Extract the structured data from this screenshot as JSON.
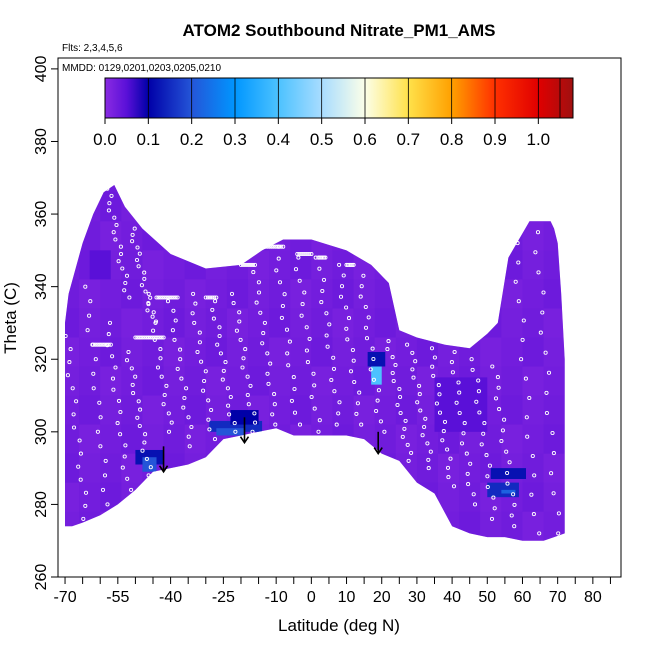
{
  "chart_data": {
    "type": "heatmap",
    "title": "ATOM2 Southbound Nitrate_PM1_AMS",
    "flights_label": "Flts: 2,3,4,5,6",
    "dates_label": "MMDD: 0129,0201,0203,0205,0210",
    "xlabel": "Latitude (deg N)",
    "ylabel": "Theta (C)",
    "xlim": [
      -72,
      88
    ],
    "ylim": [
      260,
      403
    ],
    "x_ticks": [
      -70,
      -55,
      -40,
      -25,
      -10,
      0,
      10,
      20,
      30,
      40,
      50,
      60,
      70,
      80
    ],
    "x_tick_labels": [
      "-70",
      "-55",
      "-40",
      "-25",
      "-10",
      "0",
      "10",
      "20",
      "30",
      "40",
      "50",
      "60",
      "70",
      "80"
    ],
    "x_minor_ticks": [
      -65,
      -60,
      -50,
      -45,
      -35,
      -30,
      -20,
      -15,
      -5,
      5,
      15,
      25,
      35,
      45,
      55,
      65,
      75,
      85
    ],
    "y_ticks": [
      260,
      280,
      300,
      320,
      340,
      360,
      380,
      400
    ],
    "y_tick_labels": [
      "260",
      "280",
      "300",
      "320",
      "340",
      "360",
      "380",
      "400"
    ],
    "colorbar": {
      "range": [
        0,
        1.08
      ],
      "ticks": [
        0.0,
        0.1,
        0.2,
        0.3,
        0.4,
        0.5,
        0.6,
        0.7,
        0.8,
        0.9,
        1.0
      ],
      "tick_labels": [
        "0.0",
        "0.1",
        "0.2",
        "0.3",
        "0.4",
        "0.5",
        "0.6",
        "0.7",
        "0.8",
        "0.9",
        "1.0"
      ],
      "stops": [
        {
          "v": 0.0,
          "color": "#8a2be2"
        },
        {
          "v": 0.05,
          "color": "#5a10d8"
        },
        {
          "v": 0.1,
          "color": "#0000a8"
        },
        {
          "v": 0.2,
          "color": "#2455d8"
        },
        {
          "v": 0.3,
          "color": "#0096ff"
        },
        {
          "v": 0.4,
          "color": "#4cc2ff"
        },
        {
          "v": 0.5,
          "color": "#a8dcff"
        },
        {
          "v": 0.6,
          "color": "#fcffe8"
        },
        {
          "v": 0.7,
          "color": "#ffe14a"
        },
        {
          "v": 0.8,
          "color": "#ffa000"
        },
        {
          "v": 0.9,
          "color": "#ff3000"
        },
        {
          "v": 1.0,
          "color": "#e00000"
        },
        {
          "v": 1.08,
          "color": "#a01010"
        }
      ]
    },
    "field": {
      "background_value": 0.02,
      "upper_boundary": [
        [
          -70,
          330
        ],
        [
          -69,
          338
        ],
        [
          -67,
          345
        ],
        [
          -65,
          352
        ],
        [
          -62,
          360
        ],
        [
          -59,
          366
        ],
        [
          -56,
          368
        ],
        [
          -53,
          362
        ],
        [
          -48,
          356
        ],
        [
          -40,
          349
        ],
        [
          -30,
          345
        ],
        [
          -20,
          346
        ],
        [
          -14,
          350
        ],
        [
          -8,
          353
        ],
        [
          0,
          353
        ],
        [
          10,
          350
        ],
        [
          17,
          346
        ],
        [
          22,
          341
        ],
        [
          25,
          328
        ],
        [
          30,
          326
        ],
        [
          38,
          324
        ],
        [
          45,
          323
        ],
        [
          50,
          327
        ],
        [
          53,
          330
        ],
        [
          56,
          348
        ],
        [
          62,
          358
        ],
        [
          68,
          358
        ],
        [
          69,
          356
        ],
        [
          70,
          352
        ],
        [
          71,
          338
        ],
        [
          72,
          320
        ]
      ],
      "lower_boundary": [
        [
          72,
          272
        ],
        [
          69,
          271
        ],
        [
          66,
          270
        ],
        [
          60,
          270
        ],
        [
          55,
          271
        ],
        [
          50,
          271
        ],
        [
          45,
          272
        ],
        [
          40,
          274
        ],
        [
          35,
          283
        ],
        [
          30,
          286
        ],
        [
          25,
          292
        ],
        [
          20,
          294
        ],
        [
          15,
          298
        ],
        [
          10,
          299
        ],
        [
          5,
          299
        ],
        [
          -5,
          299
        ],
        [
          -10,
          301
        ],
        [
          -15,
          300
        ],
        [
          -20,
          299
        ],
        [
          -25,
          298
        ],
        [
          -30,
          293
        ],
        [
          -35,
          291
        ],
        [
          -40,
          290
        ],
        [
          -45,
          289
        ],
        [
          -50,
          284
        ],
        [
          -55,
          280
        ],
        [
          -60,
          277
        ],
        [
          -65,
          275
        ],
        [
          -68,
          274
        ],
        [
          -70,
          274
        ]
      ],
      "patches": [
        {
          "x": [
            -50,
            -42
          ],
          "y": [
            291,
            295
          ],
          "value": 0.12
        },
        {
          "x": [
            -48,
            -44
          ],
          "y": [
            289,
            293
          ],
          "value": 0.2
        },
        {
          "x": [
            -29,
            -14
          ],
          "y": [
            300,
            303
          ],
          "value": 0.15
        },
        {
          "x": [
            -23,
            -15
          ],
          "y": [
            302,
            306
          ],
          "value": 0.1
        },
        {
          "x": [
            -27,
            -19
          ],
          "y": [
            299,
            301
          ],
          "value": 0.2
        },
        {
          "x": [
            17,
            20
          ],
          "y": [
            313,
            318
          ],
          "value": 0.4
        },
        {
          "x": [
            16,
            21
          ],
          "y": [
            318,
            322
          ],
          "value": 0.12
        },
        {
          "x": [
            51,
            61
          ],
          "y": [
            287,
            290
          ],
          "value": 0.12
        },
        {
          "x": [
            50,
            59
          ],
          "y": [
            282,
            286
          ],
          "value": 0.15
        },
        {
          "x": [
            54,
            58
          ],
          "y": [
            283,
            284
          ],
          "value": 0.22
        },
        {
          "x": [
            -63,
            -57
          ],
          "y": [
            342,
            350
          ],
          "value": 0.05
        },
        {
          "x": [
            35,
            50
          ],
          "y": [
            300,
            315
          ],
          "value": 0.05
        }
      ]
    },
    "flight_tracks": [
      {
        "x0": -58,
        "x1": -52,
        "y0": 367,
        "y1": 337
      },
      {
        "x0": -51,
        "x1": -45,
        "y0": 356,
        "y1": 330
      },
      {
        "x0": -46,
        "x1": -40,
        "y0": 338,
        "y1": 300
      },
      {
        "x0": -40,
        "x1": -34,
        "y0": 336,
        "y1": 296
      },
      {
        "x0": -34,
        "x1": -28,
        "y0": 338,
        "y1": 298
      },
      {
        "x0": -28,
        "x1": -22,
        "y0": 336,
        "y1": 300
      },
      {
        "x0": -22,
        "x1": -16,
        "y0": 338,
        "y1": 300
      },
      {
        "x0": -16,
        "x1": -10,
        "y0": 344,
        "y1": 302
      },
      {
        "x0": -10,
        "x1": -4,
        "y0": 351,
        "y1": 302
      },
      {
        "x0": -4,
        "x1": 2,
        "y0": 348,
        "y1": 300
      },
      {
        "x0": 2,
        "x1": 8,
        "y0": 348,
        "y1": 302
      },
      {
        "x0": 8,
        "x1": 14,
        "y0": 346,
        "y1": 302
      },
      {
        "x0": 14,
        "x1": 20,
        "y0": 343,
        "y1": 300
      },
      {
        "x0": 22,
        "x1": 28,
        "y0": 325,
        "y1": 292
      },
      {
        "x0": 28,
        "x1": 34,
        "y0": 324,
        "y1": 290
      },
      {
        "x0": 34,
        "x1": 40,
        "y0": 323,
        "y1": 285
      },
      {
        "x0": 40,
        "x1": 46,
        "y0": 322,
        "y1": 280
      },
      {
        "x0": 46,
        "x1": 52,
        "y0": 320,
        "y1": 276
      },
      {
        "x0": 52,
        "x1": 58,
        "y0": 318,
        "y1": 274
      },
      {
        "x0": 58,
        "x1": 64,
        "y0": 352,
        "y1": 272
      },
      {
        "x0": 64,
        "x1": 70,
        "y0": 355,
        "y1": 272
      },
      {
        "x0": -70,
        "x1": -64,
        "y0": 330,
        "y1": 276
      },
      {
        "x0": -64,
        "x1": -58,
        "y0": 340,
        "y1": 280
      },
      {
        "x0": -58,
        "x1": -52,
        "y0": 330,
        "y1": 284
      },
      {
        "x0": -52,
        "x1": -46,
        "y0": 322,
        "y1": 288
      }
    ],
    "level_legs": [
      {
        "x0": -62,
        "x1": -57,
        "y": 324
      },
      {
        "x0": -50,
        "x1": -42,
        "y": 326
      },
      {
        "x0": -44,
        "x1": -38,
        "y": 337
      },
      {
        "x0": -30,
        "x1": -27,
        "y": 337
      },
      {
        "x0": -20,
        "x1": -16,
        "y": 346
      },
      {
        "x0": -13,
        "x1": -8,
        "y": 351
      },
      {
        "x0": -4,
        "x1": 0,
        "y": 349
      },
      {
        "x0": 2,
        "x1": 4,
        "y": 348
      },
      {
        "x0": 10,
        "x1": 12,
        "y": 346
      }
    ],
    "annotations": [
      {
        "type": "arrow",
        "x": -42,
        "y_start": 296,
        "y_end": 289
      },
      {
        "type": "arrow",
        "x": -19,
        "y_start": 304,
        "y_end": 297
      },
      {
        "type": "arrow",
        "x": 19,
        "y_start": 300,
        "y_end": 294
      }
    ]
  }
}
